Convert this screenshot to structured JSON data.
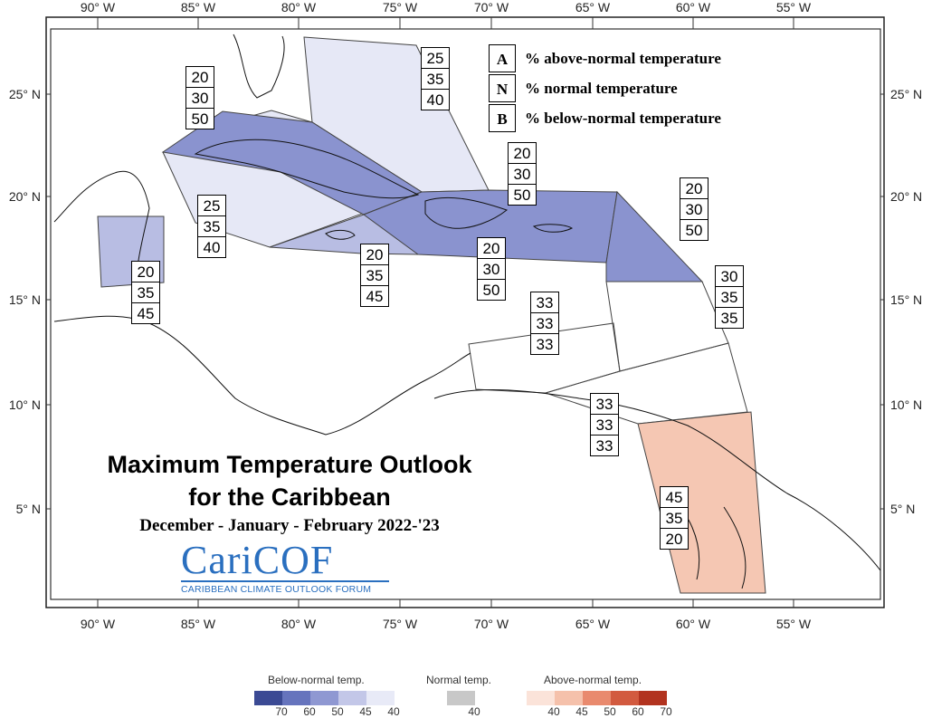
{
  "axes": {
    "top_lon": [
      "90° W",
      "85° W",
      "80° W",
      "75° W",
      "70° W",
      "65° W",
      "60° W",
      "55° W"
    ],
    "bottom_lon": [
      "90° W",
      "85° W",
      "80° W",
      "75° W",
      "70° W",
      "65° W",
      "60° W",
      "55° W"
    ],
    "left_lat": [
      "25° N",
      "20° N",
      "15° N",
      "10° N",
      "5° N"
    ],
    "right_lat": [
      "25° N",
      "20° N",
      "15° N",
      "10° N",
      "5° N"
    ]
  },
  "key": [
    {
      "letter": "A",
      "text": "% above-normal temperature"
    },
    {
      "letter": "N",
      "text": "% normal temperature"
    },
    {
      "letter": "B",
      "text": "% below-normal temperature"
    }
  ],
  "colors": {
    "below_50": "#8a93cf",
    "below_45": "#b8bde3",
    "below_40": "#e6e8f6",
    "above_45": "#f5c7b3",
    "border": "#444444"
  },
  "probabilities": [
    {
      "region": "cuba",
      "values": [
        "20",
        "30",
        "50"
      ]
    },
    {
      "region": "bahamas",
      "values": [
        "25",
        "35",
        "40"
      ]
    },
    {
      "region": "hispaniola-north",
      "values": [
        "20",
        "30",
        "50"
      ]
    },
    {
      "region": "leeward-islands",
      "values": [
        "20",
        "30",
        "50"
      ]
    },
    {
      "region": "cayman-sea",
      "values": [
        "25",
        "35",
        "40"
      ]
    },
    {
      "region": "belize",
      "values": [
        "20",
        "35",
        "45"
      ]
    },
    {
      "region": "jamaica",
      "values": [
        "20",
        "35",
        "45"
      ]
    },
    {
      "region": "hispaniola-south",
      "values": [
        "20",
        "30",
        "50"
      ]
    },
    {
      "region": "windward-islands",
      "values": [
        "30",
        "35",
        "35"
      ]
    },
    {
      "region": "abc-islands",
      "values": [
        "33",
        "33",
        "33"
      ]
    },
    {
      "region": "trinidad",
      "values": [
        "33",
        "33",
        "33"
      ]
    },
    {
      "region": "guianas",
      "values": [
        "45",
        "35",
        "20"
      ]
    }
  ],
  "title": {
    "line1": "Maximum Temperature Outlook",
    "line2": "for the Caribbean",
    "period": "December - January - February 2022-'23"
  },
  "logo": {
    "main": "CariCOF",
    "sub": "CARIBBEAN CLIMATE OUTLOOK FORUM"
  },
  "legend": {
    "below": {
      "title": "Below-normal temp.",
      "labels": [
        "70",
        "60",
        "50",
        "45",
        "40"
      ],
      "colors": [
        "#3b4a94",
        "#6674bd",
        "#8f98d2",
        "#c3c7e8",
        "#e8eaf7"
      ]
    },
    "normal": {
      "title": "Normal temp.",
      "labels": [
        "40"
      ],
      "colors": [
        "#c8c8c8"
      ]
    },
    "above": {
      "title": "Above-normal temp.",
      "labels": [
        "40",
        "45",
        "50",
        "60",
        "70"
      ],
      "colors": [
        "#fbe3d9",
        "#f5c1ab",
        "#e98a6e",
        "#d25a3f",
        "#b2331f"
      ]
    }
  }
}
